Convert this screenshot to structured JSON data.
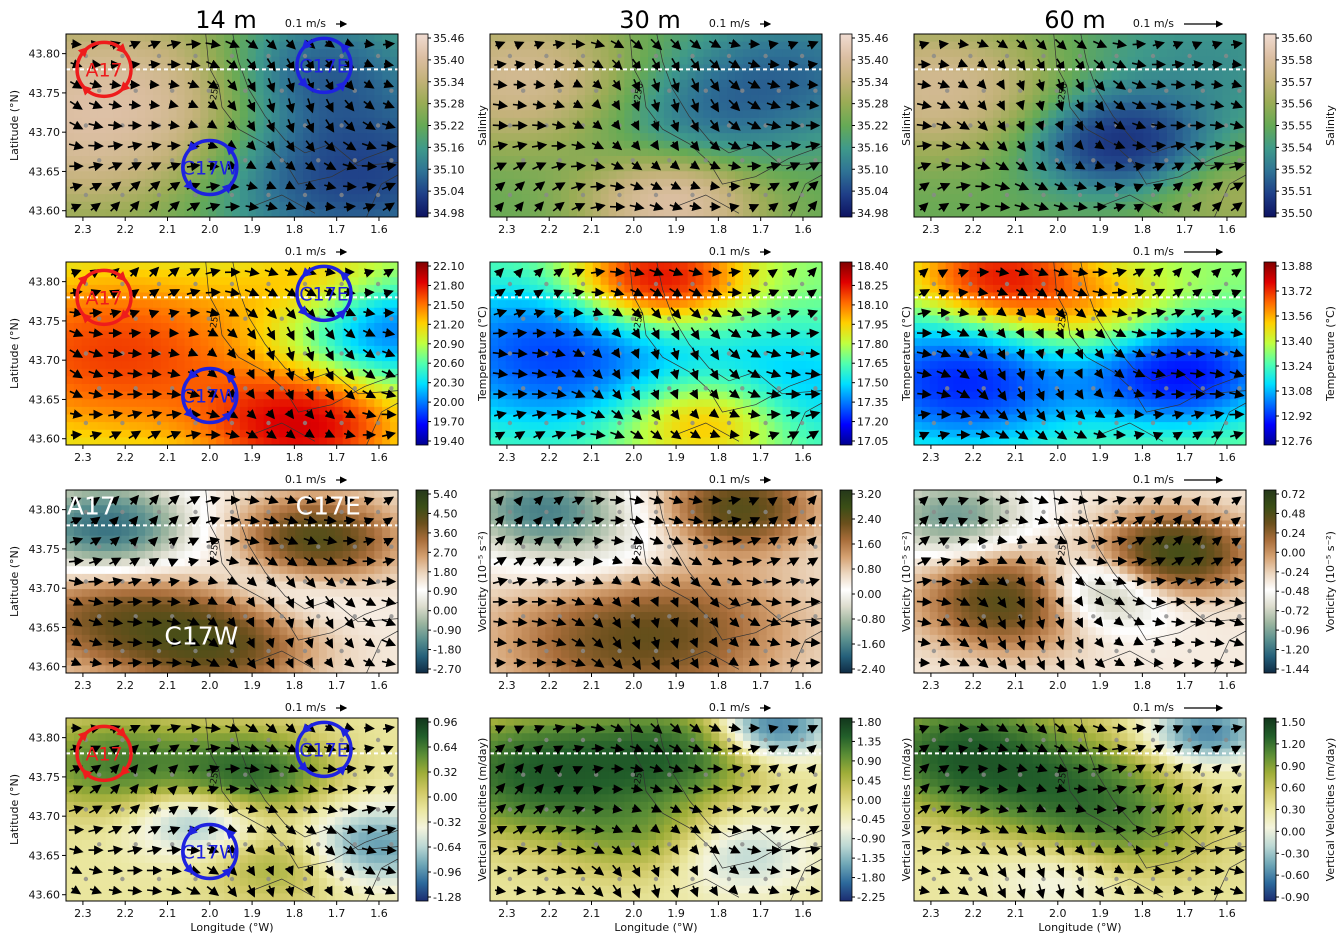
{
  "figure": {
    "columns": [
      "14 m",
      "30 m",
      "60 m"
    ],
    "x_axis_label": "Longitude (°W)",
    "y_axis_label": "Latitude (°N)",
    "vector_scale_label": "0.1 m/s",
    "isobath_label": "-250"
  },
  "colors": {
    "anticyclone": "#ee1c1c",
    "cyclone": "#1e22e0",
    "arrow": "#000000",
    "station": "#8a8a8a",
    "transect": "#ffffff"
  },
  "chart_data": [
    {
      "type": "heatmap",
      "variable": "salinity",
      "depth": "14 m",
      "row": 0,
      "col": 0,
      "xlabel": "",
      "ylabel": "Latitude (°N)",
      "colorbar_label": "Salinity",
      "colormap": "salinity",
      "x_ticks": [
        "2.3",
        "2.2",
        "2.1",
        "2.0",
        "1.9",
        "1.8",
        "1.7",
        "1.6"
      ],
      "y_ticks": [
        "43.60",
        "43.65",
        "43.70",
        "43.75",
        "43.80"
      ],
      "colorbar_ticks": [
        "34.98",
        "35.04",
        "35.10",
        "35.16",
        "35.22",
        "35.28",
        "35.34",
        "35.40",
        "35.46"
      ],
      "eddies": [
        {
          "name": "A17",
          "type": "anticyclone",
          "lon": 2.25,
          "lat": 43.78
        },
        {
          "name": "C17E",
          "type": "cyclone",
          "lon": 1.73,
          "lat": 43.785
        },
        {
          "name": "C17W",
          "type": "cyclone",
          "lon": 2.0,
          "lat": 43.655
        }
      ],
      "vector_label": "0.1 m/s",
      "transect_lat": 43.78
    },
    {
      "type": "heatmap",
      "variable": "salinity",
      "depth": "30 m",
      "row": 0,
      "col": 1,
      "xlabel": "",
      "ylabel": "",
      "colorbar_label": "Salinity",
      "colormap": "salinity",
      "x_ticks": [
        "2.3",
        "2.2",
        "2.1",
        "2.0",
        "1.9",
        "1.8",
        "1.7",
        "1.6"
      ],
      "y_ticks": [],
      "colorbar_ticks": [
        "34.98",
        "35.04",
        "35.10",
        "35.16",
        "35.22",
        "35.28",
        "35.34",
        "35.40",
        "35.46"
      ],
      "eddies": [],
      "vector_label": "0.1 m/s",
      "transect_lat": 43.78
    },
    {
      "type": "heatmap",
      "variable": "salinity",
      "depth": "60 m",
      "row": 0,
      "col": 2,
      "xlabel": "",
      "ylabel": "",
      "colorbar_label": "Salinity",
      "colormap": "salinity",
      "x_ticks": [
        "2.3",
        "2.2",
        "2.1",
        "2.0",
        "1.9",
        "1.8",
        "1.7",
        "1.6"
      ],
      "y_ticks": [],
      "colorbar_ticks": [
        "35.50",
        "35.51",
        "35.52",
        "35.54",
        "35.55",
        "35.56",
        "35.57",
        "35.58",
        "35.60"
      ],
      "eddies": [],
      "vector_label": "0.1 m/s",
      "transect_lat": 43.78
    },
    {
      "type": "heatmap",
      "variable": "temperature",
      "depth": "14 m",
      "row": 1,
      "col": 0,
      "xlabel": "",
      "ylabel": "Latitude (°N)",
      "colorbar_label": "Temperature (°C)",
      "colormap": "jet",
      "x_ticks": [
        "2.3",
        "2.2",
        "2.1",
        "2.0",
        "1.9",
        "1.8",
        "1.7",
        "1.6"
      ],
      "y_ticks": [
        "43.60",
        "43.65",
        "43.70",
        "43.75",
        "43.80"
      ],
      "colorbar_ticks": [
        "19.40",
        "19.70",
        "20.00",
        "20.30",
        "20.60",
        "20.90",
        "21.20",
        "21.50",
        "21.80",
        "22.10"
      ],
      "eddies": [
        {
          "name": "A17",
          "type": "anticyclone",
          "lon": 2.25,
          "lat": 43.78
        },
        {
          "name": "C17E",
          "type": "cyclone",
          "lon": 1.73,
          "lat": 43.785
        },
        {
          "name": "C17W",
          "type": "cyclone",
          "lon": 2.0,
          "lat": 43.655
        }
      ],
      "vector_label": "0.1 m/s",
      "transect_lat": 43.78
    },
    {
      "type": "heatmap",
      "variable": "temperature",
      "depth": "30 m",
      "row": 1,
      "col": 1,
      "xlabel": "",
      "ylabel": "",
      "colorbar_label": "Temperature (°C)",
      "colormap": "jet",
      "x_ticks": [
        "2.3",
        "2.2",
        "2.1",
        "2.0",
        "1.9",
        "1.8",
        "1.7",
        "1.6"
      ],
      "y_ticks": [],
      "colorbar_ticks": [
        "17.05",
        "17.20",
        "17.35",
        "17.50",
        "17.65",
        "17.80",
        "17.95",
        "18.10",
        "18.25",
        "18.40"
      ],
      "eddies": [],
      "vector_label": "0.1 m/s",
      "transect_lat": 43.78
    },
    {
      "type": "heatmap",
      "variable": "temperature",
      "depth": "60 m",
      "row": 1,
      "col": 2,
      "xlabel": "",
      "ylabel": "",
      "colorbar_label": "Temperature (°C)",
      "colormap": "jet",
      "x_ticks": [
        "2.3",
        "2.2",
        "2.1",
        "2.0",
        "1.9",
        "1.8",
        "1.7",
        "1.6"
      ],
      "y_ticks": [],
      "colorbar_ticks": [
        "12.76",
        "12.92",
        "13.08",
        "13.24",
        "13.40",
        "13.56",
        "13.72",
        "13.88"
      ],
      "eddies": [],
      "vector_label": "0.1 m/s",
      "transect_lat": 43.78
    },
    {
      "type": "heatmap",
      "variable": "vorticity",
      "depth": "14 m",
      "row": 2,
      "col": 0,
      "xlabel": "",
      "ylabel": "Latitude (°N)",
      "colorbar_label": "Vorticity (10⁻⁵ s⁻²)",
      "colormap": "vorticity",
      "x_ticks": [
        "2.3",
        "2.2",
        "2.1",
        "2.0",
        "1.9",
        "1.8",
        "1.7",
        "1.6"
      ],
      "y_ticks": [
        "43.60",
        "43.65",
        "43.70",
        "43.75",
        "43.80"
      ],
      "colorbar_ticks": [
        "-2.70",
        "-1.80",
        "-0.90",
        "0.00",
        "0.90",
        "1.80",
        "2.70",
        "3.60",
        "4.50",
        "5.40"
      ],
      "eddy_labels": [
        {
          "name": "A17",
          "lon": 2.28,
          "lat": 43.805
        },
        {
          "name": "C17E",
          "lon": 1.72,
          "lat": 43.805
        },
        {
          "name": "C17W",
          "lon": 2.02,
          "lat": 43.64
        }
      ],
      "eddies": [],
      "vector_label": "0.1 m/s",
      "transect_lat": 43.78
    },
    {
      "type": "heatmap",
      "variable": "vorticity",
      "depth": "30 m",
      "row": 2,
      "col": 1,
      "xlabel": "",
      "ylabel": "",
      "colorbar_label": "Vorticity (10⁻⁵ s⁻²)",
      "colormap": "vorticity",
      "x_ticks": [
        "2.3",
        "2.2",
        "2.1",
        "2.0",
        "1.9",
        "1.8",
        "1.7",
        "1.6"
      ],
      "y_ticks": [],
      "colorbar_ticks": [
        "-2.40",
        "-1.60",
        "-0.80",
        "0.00",
        "0.80",
        "1.60",
        "2.40",
        "3.20"
      ],
      "eddies": [],
      "vector_label": "0.1 m/s",
      "transect_lat": 43.78
    },
    {
      "type": "heatmap",
      "variable": "vorticity",
      "depth": "60 m",
      "row": 2,
      "col": 2,
      "xlabel": "",
      "ylabel": "",
      "colorbar_label": "Vorticity (10⁻⁵ s⁻²)",
      "colormap": "vorticity",
      "x_ticks": [
        "2.3",
        "2.2",
        "2.1",
        "2.0",
        "1.9",
        "1.8",
        "1.7",
        "1.6"
      ],
      "y_ticks": [],
      "colorbar_ticks": [
        "-1.44",
        "-1.20",
        "-0.96",
        "-0.72",
        "-0.48",
        "-0.24",
        "0.00",
        "0.24",
        "0.48",
        "0.72"
      ],
      "eddies": [],
      "vector_label": "0.1 m/s",
      "transect_lat": 43.78
    },
    {
      "type": "heatmap",
      "variable": "vertical_velocity",
      "depth": "14 m",
      "row": 3,
      "col": 0,
      "xlabel": "Longitude (°W)",
      "ylabel": "Latitude (°N)",
      "colorbar_label": "Vertical Velocities (m/day)",
      "colormap": "wvel",
      "x_ticks": [
        "2.3",
        "2.2",
        "2.1",
        "2.0",
        "1.9",
        "1.8",
        "1.7",
        "1.6"
      ],
      "y_ticks": [
        "43.60",
        "43.65",
        "43.70",
        "43.75",
        "43.80"
      ],
      "colorbar_ticks": [
        "-1.28",
        "-0.96",
        "-0.64",
        "-0.32",
        "0.00",
        "0.32",
        "0.64",
        "0.96"
      ],
      "eddies": [
        {
          "name": "A17",
          "type": "anticyclone",
          "lon": 2.25,
          "lat": 43.78
        },
        {
          "name": "C17E",
          "type": "cyclone",
          "lon": 1.73,
          "lat": 43.785
        },
        {
          "name": "C17W",
          "type": "cyclone",
          "lon": 2.0,
          "lat": 43.655
        }
      ],
      "vector_label": "0.1 m/s",
      "transect_lat": 43.78
    },
    {
      "type": "heatmap",
      "variable": "vertical_velocity",
      "depth": "30 m",
      "row": 3,
      "col": 1,
      "xlabel": "Longitude (°W)",
      "ylabel": "",
      "colorbar_label": "Vertical Velocities (m/day)",
      "colormap": "wvel",
      "x_ticks": [
        "2.3",
        "2.2",
        "2.1",
        "2.0",
        "1.9",
        "1.8",
        "1.7",
        "1.6"
      ],
      "y_ticks": [],
      "colorbar_ticks": [
        "-2.25",
        "-1.80",
        "-1.35",
        "-0.90",
        "-0.45",
        "0.00",
        "0.45",
        "0.90",
        "1.35",
        "1.80"
      ],
      "eddies": [],
      "vector_label": "0.1 m/s",
      "transect_lat": 43.78
    },
    {
      "type": "heatmap",
      "variable": "vertical_velocity",
      "depth": "60 m",
      "row": 3,
      "col": 2,
      "xlabel": "Longitude (°W)",
      "ylabel": "",
      "colorbar_label": "Vertical Velocities (m/day)",
      "colormap": "wvel",
      "x_ticks": [
        "2.3",
        "2.2",
        "2.1",
        "2.0",
        "1.9",
        "1.8",
        "1.7",
        "1.6"
      ],
      "y_ticks": [],
      "colorbar_ticks": [
        "-0.90",
        "-0.60",
        "-0.30",
        "0.00",
        "0.30",
        "0.60",
        "0.90",
        "1.20",
        "1.50"
      ],
      "eddies": [],
      "vector_label": "0.1 m/s",
      "transect_lat": 43.78
    }
  ]
}
